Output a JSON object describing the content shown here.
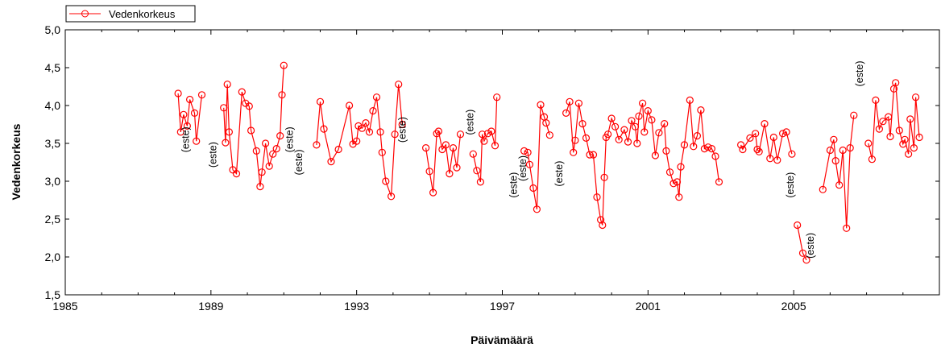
{
  "chart_data": {
    "type": "line",
    "xlabel": "Päivämäärä",
    "ylabel": "Vedenkorkeus",
    "xlim": [
      1985,
      2009
    ],
    "ylim": [
      1.5,
      5.0
    ],
    "xticks": [
      1985,
      1989,
      1993,
      1997,
      2001,
      2005
    ],
    "xtick_labels": [
      "1985",
      "1989",
      "1993",
      "1997",
      "2001",
      "2005"
    ],
    "yticks": [
      1.5,
      2.0,
      2.5,
      3.0,
      3.5,
      4.0,
      4.5,
      5.0
    ],
    "ytick_labels": [
      "1,5",
      "2,0",
      "2,5",
      "3,0",
      "3,5",
      "4,0",
      "4,5",
      "5,0"
    ],
    "grid": false,
    "legend": "top-left",
    "line_color": "#ff0000",
    "annotation_text": "(este)",
    "series": [
      {
        "name": "Vedenkorkeus",
        "segments": [
          [
            [
              1988.1,
              4.16
            ],
            [
              1988.17,
              3.65
            ],
            [
              1988.25,
              3.88
            ],
            [
              1988.35,
              3.73
            ],
            [
              1988.42,
              4.08
            ],
            [
              1988.55,
              3.9
            ],
            [
              1988.6,
              3.53
            ],
            [
              1988.75,
              4.14
            ]
          ],
          [
            [
              1989.35,
              3.97
            ],
            [
              1989.4,
              3.51
            ],
            [
              1989.45,
              4.28
            ],
            [
              1989.5,
              3.65
            ],
            [
              1989.6,
              3.15
            ],
            [
              1989.7,
              3.1
            ],
            [
              1989.85,
              4.18
            ],
            [
              1989.95,
              4.03
            ],
            [
              1990.05,
              3.99
            ],
            [
              1990.1,
              3.67
            ],
            [
              1990.25,
              3.4
            ],
            [
              1990.35,
              2.93
            ],
            [
              1990.4,
              3.12
            ],
            [
              1990.5,
              3.5
            ],
            [
              1990.6,
              3.2
            ],
            [
              1990.7,
              3.36
            ],
            [
              1990.8,
              3.43
            ],
            [
              1990.9,
              3.6
            ],
            [
              1990.95,
              4.14
            ],
            [
              1991.0,
              4.53
            ]
          ],
          [
            [
              1991.9,
              3.48
            ],
            [
              1992.0,
              4.05
            ],
            [
              1992.1,
              3.69
            ],
            [
              1992.3,
              3.26
            ],
            [
              1992.5,
              3.42
            ],
            [
              1992.8,
              4.0
            ],
            [
              1992.9,
              3.49
            ],
            [
              1993.0,
              3.53
            ],
            [
              1993.05,
              3.73
            ],
            [
              1993.15,
              3.7
            ],
            [
              1993.25,
              3.77
            ],
            [
              1993.35,
              3.65
            ],
            [
              1993.45,
              3.93
            ],
            [
              1993.55,
              4.11
            ],
            [
              1993.65,
              3.65
            ],
            [
              1993.7,
              3.38
            ],
            [
              1993.8,
              3.0
            ],
            [
              1993.95,
              2.8
            ],
            [
              1994.05,
              3.62
            ],
            [
              1994.15,
              4.28
            ],
            [
              1994.25,
              3.75
            ]
          ],
          [
            [
              1994.9,
              3.44
            ],
            [
              1995.0,
              3.13
            ],
            [
              1995.1,
              2.85
            ],
            [
              1995.2,
              3.63
            ],
            [
              1995.25,
              3.66
            ],
            [
              1995.35,
              3.42
            ],
            [
              1995.45,
              3.48
            ],
            [
              1995.55,
              3.1
            ],
            [
              1995.65,
              3.44
            ],
            [
              1995.75,
              3.18
            ],
            [
              1995.85,
              3.62
            ]
          ],
          [
            [
              1996.2,
              3.36
            ],
            [
              1996.3,
              3.14
            ],
            [
              1996.4,
              2.99
            ],
            [
              1996.45,
              3.62
            ],
            [
              1996.5,
              3.53
            ],
            [
              1996.6,
              3.63
            ],
            [
              1996.7,
              3.66
            ],
            [
              1996.8,
              3.47
            ],
            [
              1996.85,
              4.11
            ]
          ],
          [
            [
              1997.6,
              3.4
            ],
            [
              1997.7,
              3.38
            ],
            [
              1997.75,
              3.22
            ],
            [
              1997.85,
              2.91
            ],
            [
              1997.95,
              2.63
            ],
            [
              1998.05,
              4.01
            ],
            [
              1998.15,
              3.85
            ],
            [
              1998.2,
              3.77
            ],
            [
              1998.3,
              3.61
            ]
          ],
          [
            [
              1998.75,
              3.9
            ],
            [
              1998.85,
              4.05
            ],
            [
              1998.95,
              3.38
            ],
            [
              1999.0,
              3.54
            ],
            [
              1999.1,
              4.03
            ],
            [
              1999.2,
              3.76
            ],
            [
              1999.3,
              3.57
            ],
            [
              1999.4,
              3.35
            ],
            [
              1999.5,
              3.35
            ],
            [
              1999.6,
              2.79
            ],
            [
              1999.7,
              2.49
            ],
            [
              1999.75,
              2.42
            ],
            [
              1999.8,
              3.05
            ],
            [
              1999.85,
              3.58
            ],
            [
              1999.9,
              3.62
            ],
            [
              2000.0,
              3.83
            ],
            [
              2000.1,
              3.72
            ],
            [
              2000.2,
              3.55
            ],
            [
              2000.35,
              3.68
            ],
            [
              2000.45,
              3.52
            ],
            [
              2000.55,
              3.8
            ],
            [
              2000.65,
              3.72
            ],
            [
              2000.7,
              3.5
            ],
            [
              2000.75,
              3.86
            ],
            [
              2000.85,
              4.03
            ],
            [
              2000.9,
              3.65
            ],
            [
              2001.0,
              3.93
            ],
            [
              2001.1,
              3.81
            ],
            [
              2001.2,
              3.34
            ],
            [
              2001.3,
              3.64
            ],
            [
              2001.45,
              3.76
            ],
            [
              2001.5,
              3.4
            ],
            [
              2001.6,
              3.12
            ],
            [
              2001.7,
              2.97
            ],
            [
              2001.8,
              2.99
            ],
            [
              2001.85,
              2.79
            ],
            [
              2001.9,
              3.19
            ],
            [
              2002.0,
              3.48
            ],
            [
              2002.15,
              4.07
            ],
            [
              2002.25,
              3.46
            ],
            [
              2002.35,
              3.6
            ],
            [
              2002.45,
              3.94
            ],
            [
              2002.55,
              3.43
            ],
            [
              2002.65,
              3.45
            ],
            [
              2002.75,
              3.43
            ],
            [
              2002.85,
              3.33
            ],
            [
              2002.95,
              2.99
            ]
          ],
          [
            [
              2003.55,
              3.48
            ],
            [
              2003.6,
              3.42
            ],
            [
              2003.8,
              3.57
            ],
            [
              2003.95,
              3.63
            ],
            [
              2004.0,
              3.42
            ],
            [
              2004.05,
              3.39
            ],
            [
              2004.2,
              3.76
            ],
            [
              2004.35,
              3.3
            ],
            [
              2004.45,
              3.58
            ],
            [
              2004.55,
              3.28
            ],
            [
              2004.7,
              3.63
            ],
            [
              2004.8,
              3.65
            ],
            [
              2004.95,
              3.36
            ]
          ],
          [
            [
              2005.1,
              2.42
            ],
            [
              2005.25,
              2.05
            ],
            [
              2005.35,
              1.96
            ]
          ],
          [
            [
              2005.8,
              2.89
            ],
            [
              2006.0,
              3.41
            ],
            [
              2006.1,
              3.55
            ],
            [
              2006.15,
              3.27
            ],
            [
              2006.25,
              2.95
            ],
            [
              2006.35,
              3.41
            ],
            [
              2006.45,
              2.38
            ],
            [
              2006.55,
              3.44
            ],
            [
              2006.65,
              3.87
            ]
          ],
          [
            [
              2007.05,
              3.5
            ],
            [
              2007.15,
              3.29
            ],
            [
              2007.25,
              4.07
            ],
            [
              2007.35,
              3.69
            ],
            [
              2007.45,
              3.79
            ],
            [
              2007.6,
              3.85
            ],
            [
              2007.65,
              3.59
            ],
            [
              2007.75,
              4.22
            ],
            [
              2007.8,
              4.3
            ],
            [
              2007.9,
              3.67
            ],
            [
              2008.0,
              3.49
            ],
            [
              2008.05,
              3.55
            ],
            [
              2008.15,
              3.36
            ],
            [
              2008.2,
              3.82
            ],
            [
              2008.3,
              3.44
            ],
            [
              2008.35,
              4.11
            ],
            [
              2008.45,
              3.58
            ]
          ]
        ]
      }
    ],
    "annotations": [
      {
        "x": 1988.4,
        "y": 3.55
      },
      {
        "x": 1989.15,
        "y": 3.35
      },
      {
        "x": 1991.5,
        "y": 3.25
      },
      {
        "x": 1991.25,
        "y": 3.55
      },
      {
        "x": 1994.35,
        "y": 3.68
      },
      {
        "x": 1996.2,
        "y": 3.78
      },
      {
        "x": 1997.4,
        "y": 2.95
      },
      {
        "x": 1997.65,
        "y": 3.17
      },
      {
        "x": 1998.65,
        "y": 3.1
      },
      {
        "x": 2005.0,
        "y": 2.95
      },
      {
        "x": 2005.55,
        "y": 2.15
      },
      {
        "x": 2006.9,
        "y": 4.42
      }
    ]
  }
}
